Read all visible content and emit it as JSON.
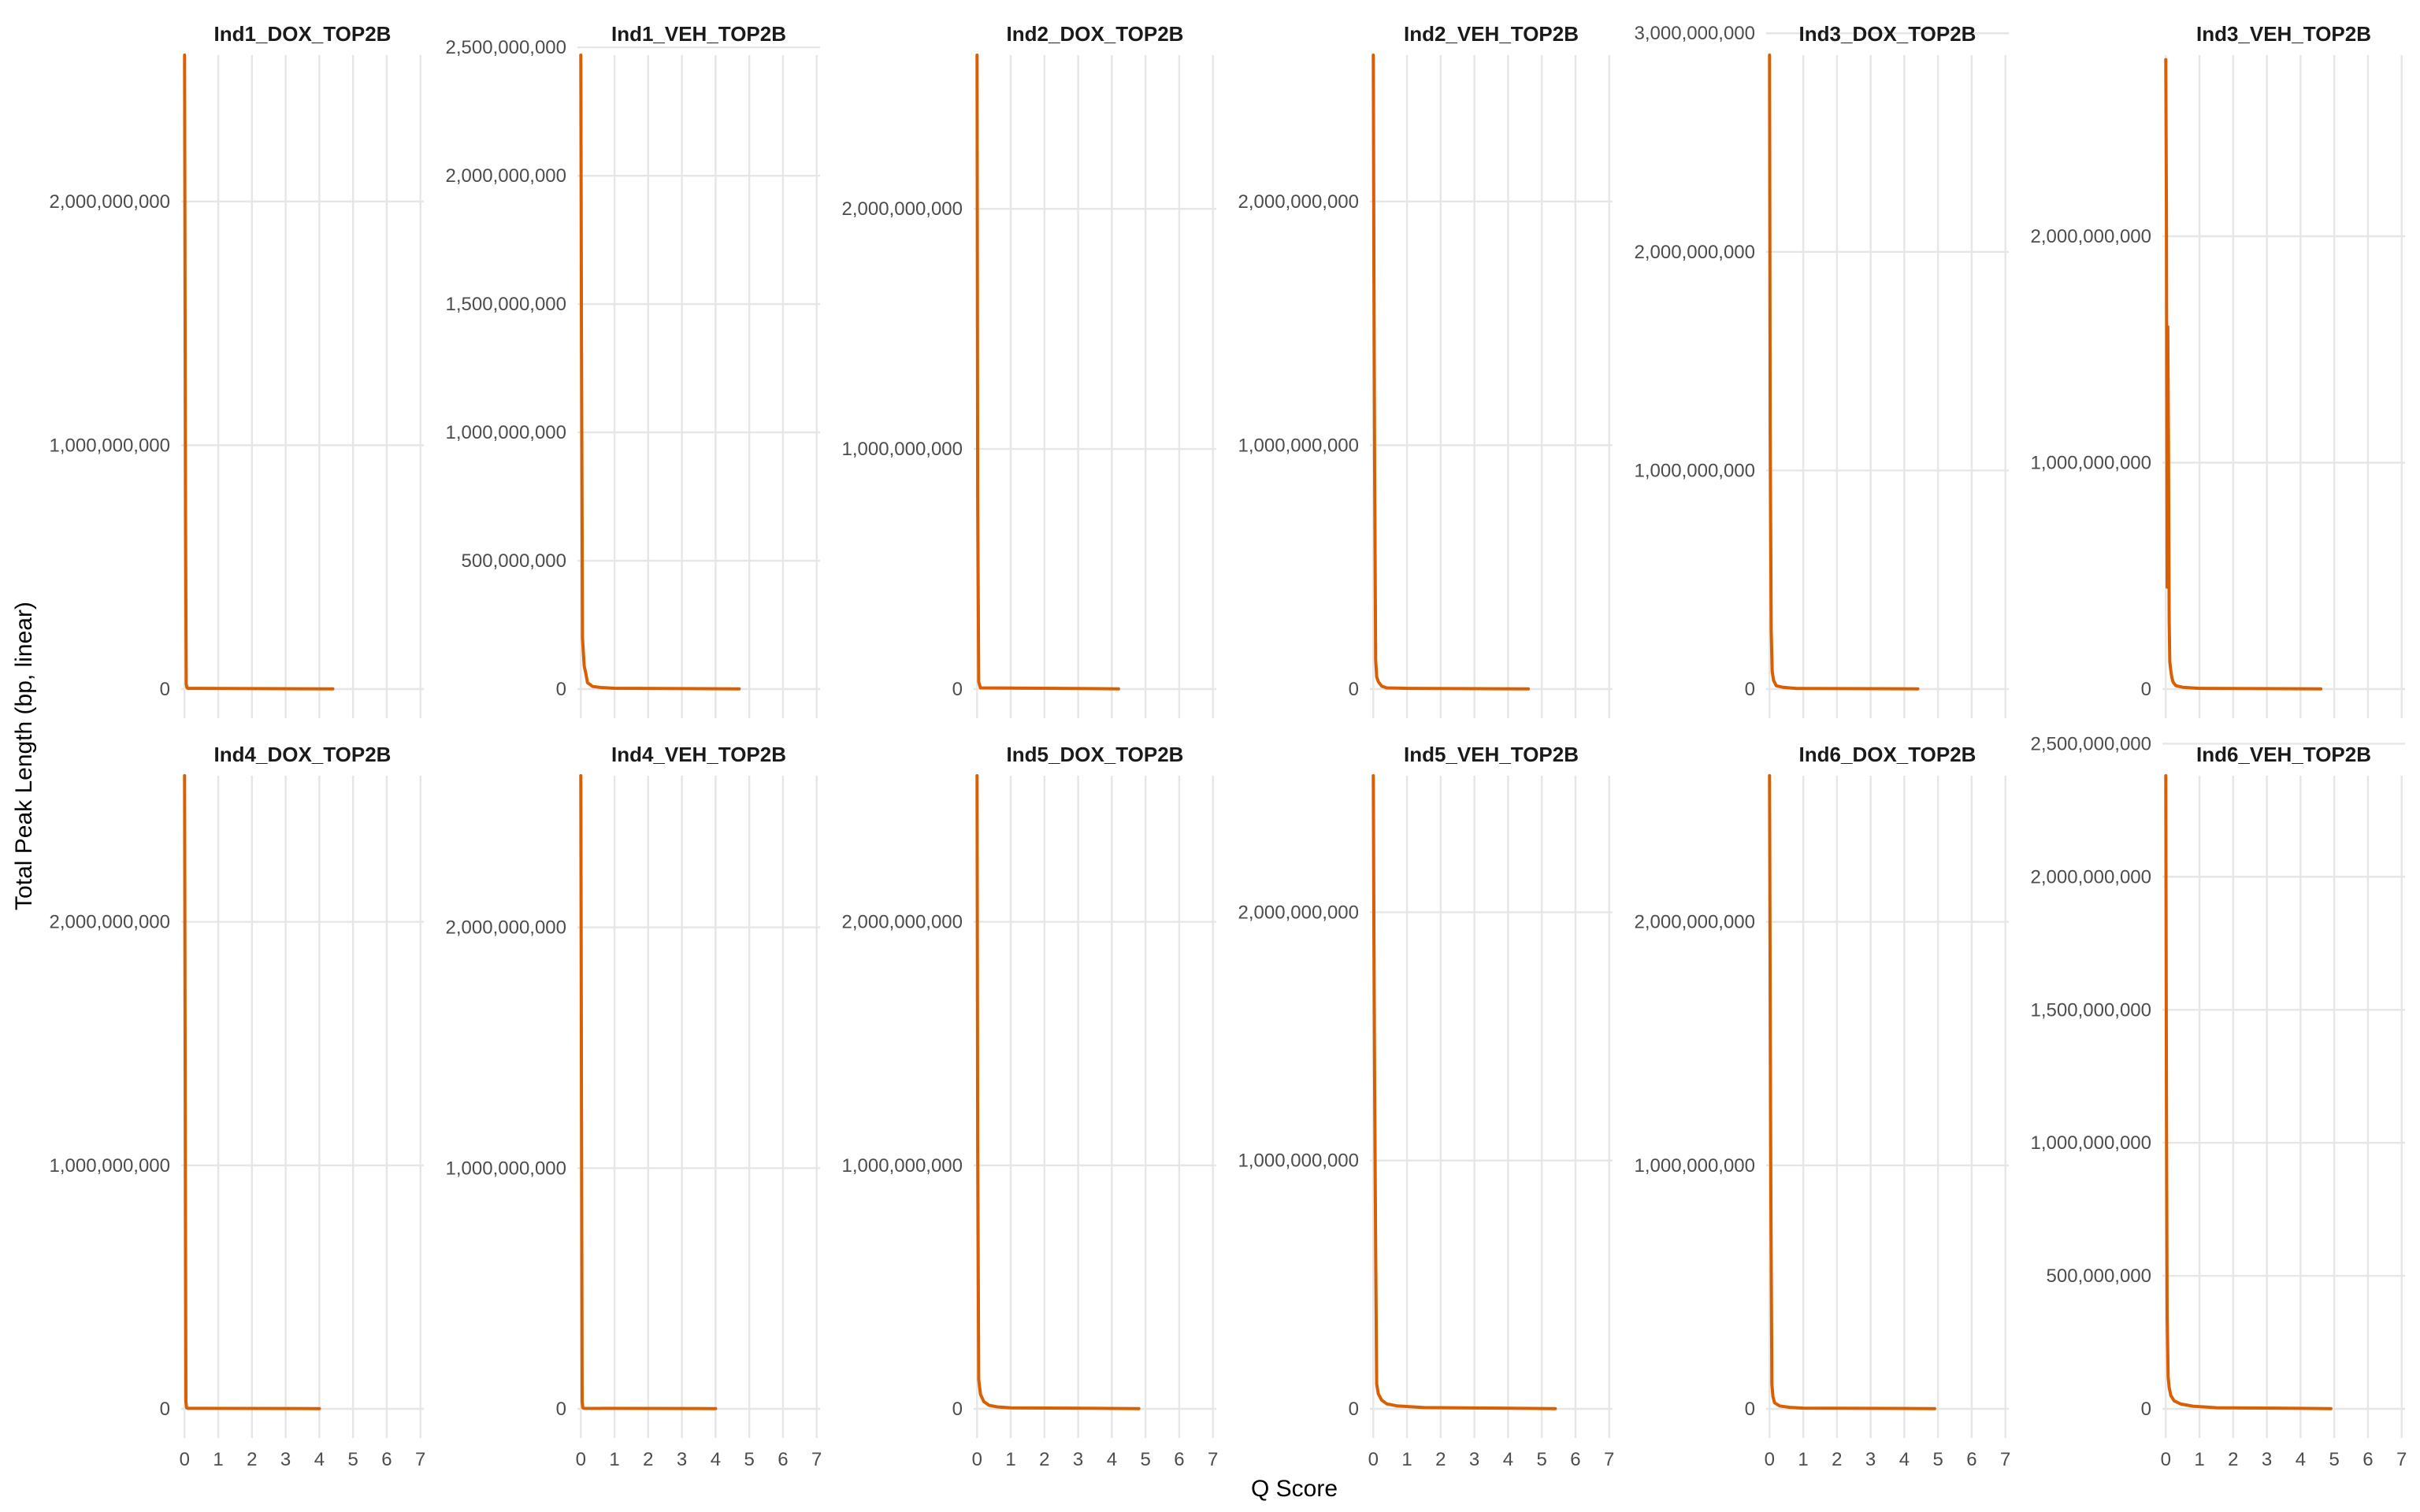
{
  "chart_data": {
    "type": "line",
    "xlabel": "Q Score",
    "ylabel": "Total Peak Length (bp, linear)",
    "x_ticks": [
      0,
      1,
      2,
      3,
      4,
      5,
      6,
      7
    ],
    "xlim": [
      0,
      7
    ],
    "grid": true,
    "legend": "none",
    "line_color": "#d95f02",
    "facets": [
      {
        "title": "Ind1_DOX_TOP2B",
        "ylim": [
          0,
          2600000000
        ],
        "y_ticks": [
          0,
          1000000000,
          2000000000
        ],
        "x": [
          0,
          0.01,
          0.02,
          0.03,
          0.05,
          0.07,
          0.1,
          4.4
        ],
        "y": [
          2600000000,
          1950000000,
          1300000000,
          650000000,
          20000000,
          6000000,
          3000000,
          1000000
        ]
      },
      {
        "title": "Ind1_VEH_TOP2B",
        "ylim": [
          0,
          2470000000
        ],
        "y_ticks": [
          0,
          500000000,
          1000000000,
          1500000000,
          2000000000,
          2500000000
        ],
        "x": [
          0,
          0.02,
          0.05,
          0.1,
          0.15,
          0.2,
          0.35,
          0.6,
          1.0,
          4.7
        ],
        "y": [
          2470000000,
          1400000000,
          200000000,
          90000000,
          60000000,
          25000000,
          10000000,
          6000000,
          3000000,
          1000000
        ]
      },
      {
        "title": "Ind2_DOX_TOP2B",
        "ylim": [
          0,
          2640000000
        ],
        "y_ticks": [
          0,
          1000000000,
          2000000000
        ],
        "x": [
          0,
          0.02,
          0.05,
          0.1,
          4.2
        ],
        "y": [
          2640000000,
          800000000,
          30000000,
          5000000,
          1000000
        ]
      },
      {
        "title": "Ind2_VEH_TOP2B",
        "ylim": [
          0,
          2600000000
        ],
        "y_ticks": [
          0,
          1000000000,
          2000000000
        ],
        "x": [
          0,
          0.02,
          0.04,
          0.07,
          0.1,
          0.15,
          0.25,
          0.4,
          1.0,
          4.6
        ],
        "y": [
          2600000000,
          1700000000,
          900000000,
          120000000,
          50000000,
          30000000,
          12000000,
          5000000,
          3000000,
          1000000
        ]
      },
      {
        "title": "Ind3_DOX_TOP2B",
        "ylim": [
          0,
          2900000000
        ],
        "y_ticks": [
          0,
          1000000000,
          2000000000,
          3000000000
        ],
        "x": [
          0,
          0.02,
          0.05,
          0.08,
          0.12,
          0.2,
          0.4,
          0.8,
          4.4
        ],
        "y": [
          2900000000,
          1200000000,
          270000000,
          80000000,
          40000000,
          15000000,
          8000000,
          3000000,
          1000000
        ]
      },
      {
        "title": "Ind3_VEH_TOP2B",
        "ylim": [
          0,
          2800000000
        ],
        "y_ticks": [
          0,
          1000000000,
          2000000000
        ],
        "x": [
          0,
          0.02,
          0.04,
          0.06,
          0.08,
          0.1,
          0.12,
          0.15,
          0.18,
          0.22,
          0.3,
          0.5,
          1.0,
          4.6
        ],
        "y": [
          2780000000,
          2100000000,
          450000000,
          1600000000,
          1100000000,
          300000000,
          120000000,
          80000000,
          50000000,
          30000000,
          15000000,
          8000000,
          3000000,
          1000000
        ]
      },
      {
        "title": "Ind4_DOX_TOP2B",
        "ylim": [
          0,
          2600000000
        ],
        "y_ticks": [
          0,
          1000000000,
          2000000000
        ],
        "x": [
          0,
          0.02,
          0.04,
          0.06,
          0.1,
          4.0
        ],
        "y": [
          2600000000,
          1300000000,
          30000000,
          5000000,
          2000000,
          1000000
        ]
      },
      {
        "title": "Ind4_VEH_TOP2B",
        "ylim": [
          0,
          2630000000
        ],
        "y_ticks": [
          0,
          1000000000,
          2000000000
        ],
        "x": [
          0,
          0.02,
          0.04,
          0.06,
          0.1,
          4.0
        ],
        "y": [
          2630000000,
          1330000000,
          30000000,
          5000000,
          2000000,
          1000000
        ]
      },
      {
        "title": "Ind5_DOX_TOP2B",
        "ylim": [
          0,
          2600000000
        ],
        "y_ticks": [
          0,
          1000000000,
          2000000000
        ],
        "x": [
          0,
          0.02,
          0.05,
          0.1,
          0.2,
          0.35,
          0.6,
          1.0,
          4.8
        ],
        "y": [
          2600000000,
          1100000000,
          120000000,
          60000000,
          30000000,
          15000000,
          8000000,
          4000000,
          1000000
        ]
      },
      {
        "title": "Ind5_VEH_TOP2B",
        "ylim": [
          0,
          2550000000
        ],
        "y_ticks": [
          0,
          1000000000,
          2000000000
        ],
        "x": [
          0,
          0.02,
          0.04,
          0.07,
          0.1,
          0.15,
          0.25,
          0.4,
          0.7,
          1.5,
          5.4
        ],
        "y": [
          2550000000,
          1900000000,
          1300000000,
          650000000,
          100000000,
          60000000,
          35000000,
          20000000,
          12000000,
          5000000,
          1000000
        ]
      },
      {
        "title": "Ind6_DOX_TOP2B",
        "ylim": [
          0,
          2600000000
        ],
        "y_ticks": [
          0,
          1000000000,
          2000000000
        ],
        "x": [
          0,
          0.02,
          0.04,
          0.07,
          0.1,
          0.15,
          0.3,
          0.6,
          1.0,
          4.9
        ],
        "y": [
          2600000000,
          1700000000,
          850000000,
          100000000,
          50000000,
          25000000,
          12000000,
          6000000,
          3000000,
          1000000
        ]
      },
      {
        "title": "Ind6_VEH_TOP2B",
        "ylim": [
          0,
          2380000000
        ],
        "y_ticks": [
          0,
          500000000,
          1000000000,
          1500000000,
          2000000000,
          2500000000
        ],
        "x": [
          0,
          0.02,
          0.04,
          0.07,
          0.1,
          0.15,
          0.25,
          0.45,
          0.8,
          1.5,
          4.9
        ],
        "y": [
          2380000000,
          1200000000,
          350000000,
          120000000,
          80000000,
          50000000,
          30000000,
          18000000,
          10000000,
          4000000,
          1000000
        ]
      }
    ]
  }
}
